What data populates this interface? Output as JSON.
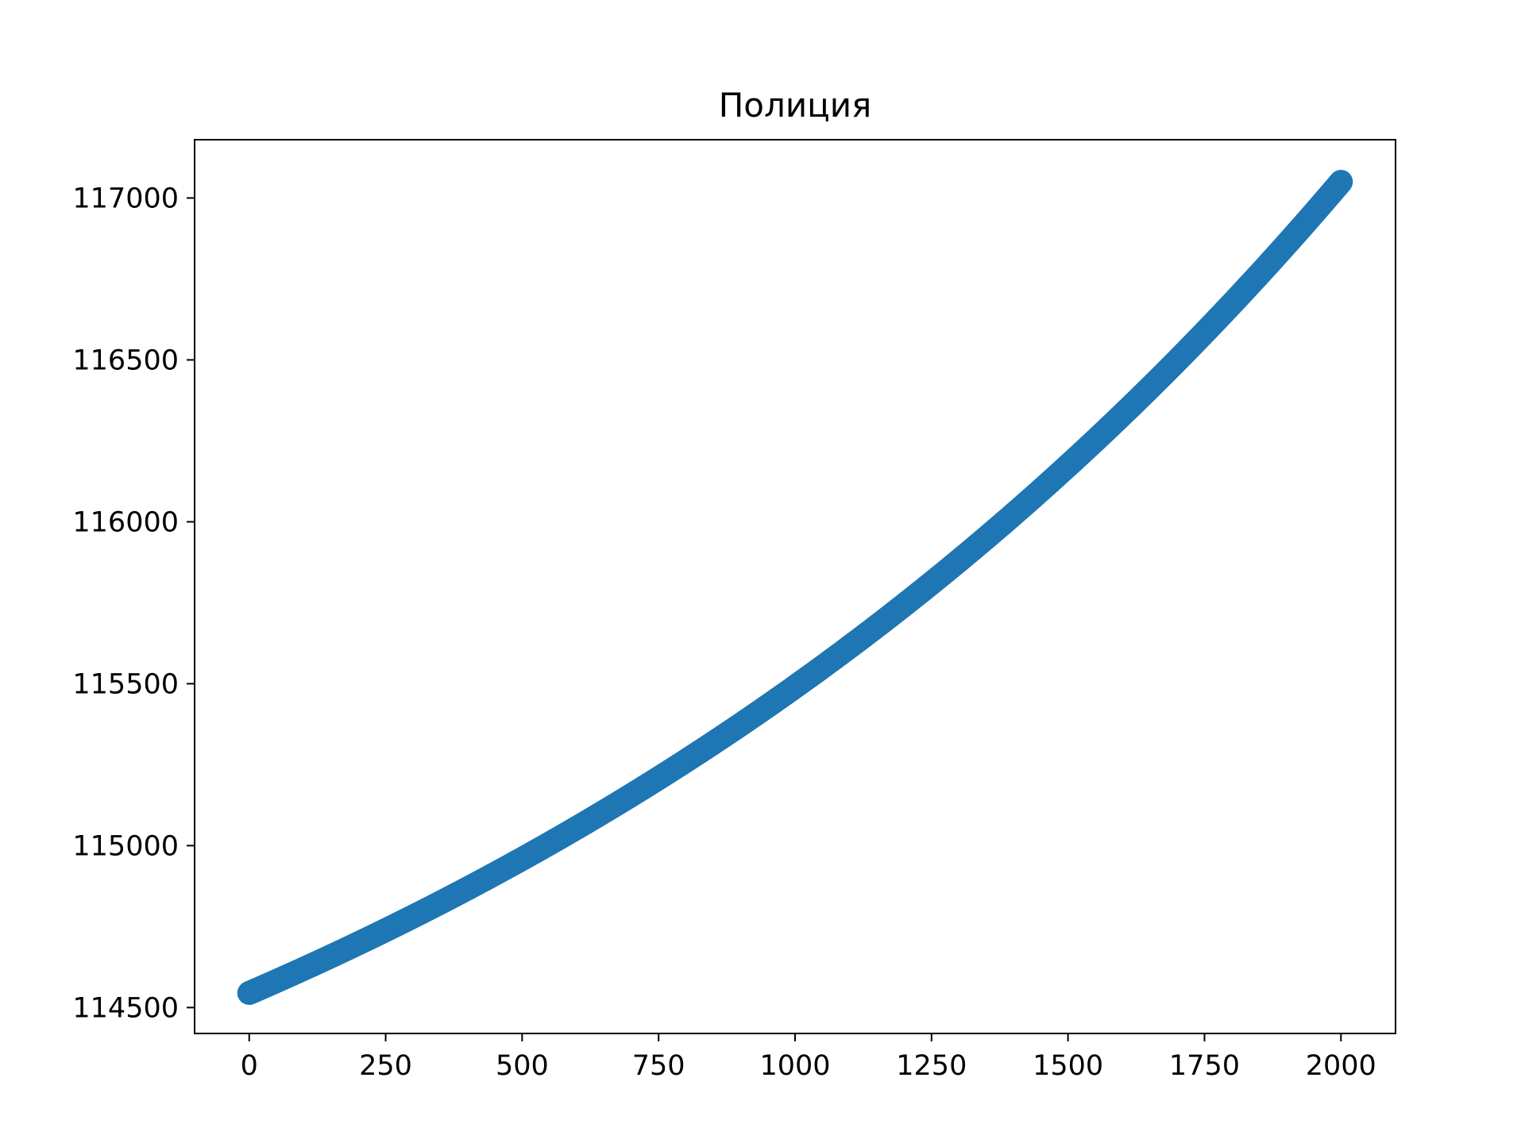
{
  "chart_data": {
    "type": "scatter",
    "title": "Полиция",
    "xlabel": "",
    "ylabel": "",
    "xlim": [
      -100,
      2100
    ],
    "ylim": [
      114420,
      117180
    ],
    "x_ticks": [
      0,
      250,
      500,
      750,
      1000,
      1250,
      1500,
      1750,
      2000
    ],
    "y_ticks": [
      114500,
      115000,
      115500,
      116000,
      116500,
      117000
    ],
    "x_tick_labels": [
      "0",
      "250",
      "500",
      "750",
      "1000",
      "1250",
      "1500",
      "1750",
      "2000"
    ],
    "y_tick_labels": [
      "114500",
      "115000",
      "115500",
      "116000",
      "116500",
      "117000"
    ],
    "grid": false,
    "legend": "none",
    "color": "#1f77b4",
    "series": [
      {
        "x_start": 0,
        "x_end": 2000,
        "x_step": 1,
        "y_start": 114545,
        "y_end": 117050,
        "x": [
          0,
          250,
          500,
          750,
          1000,
          1250,
          1500,
          1750,
          2000
        ],
        "y": [
          114545,
          114760,
          114995,
          115250,
          115525,
          115820,
          116135,
          116480,
          117050
        ]
      }
    ]
  }
}
